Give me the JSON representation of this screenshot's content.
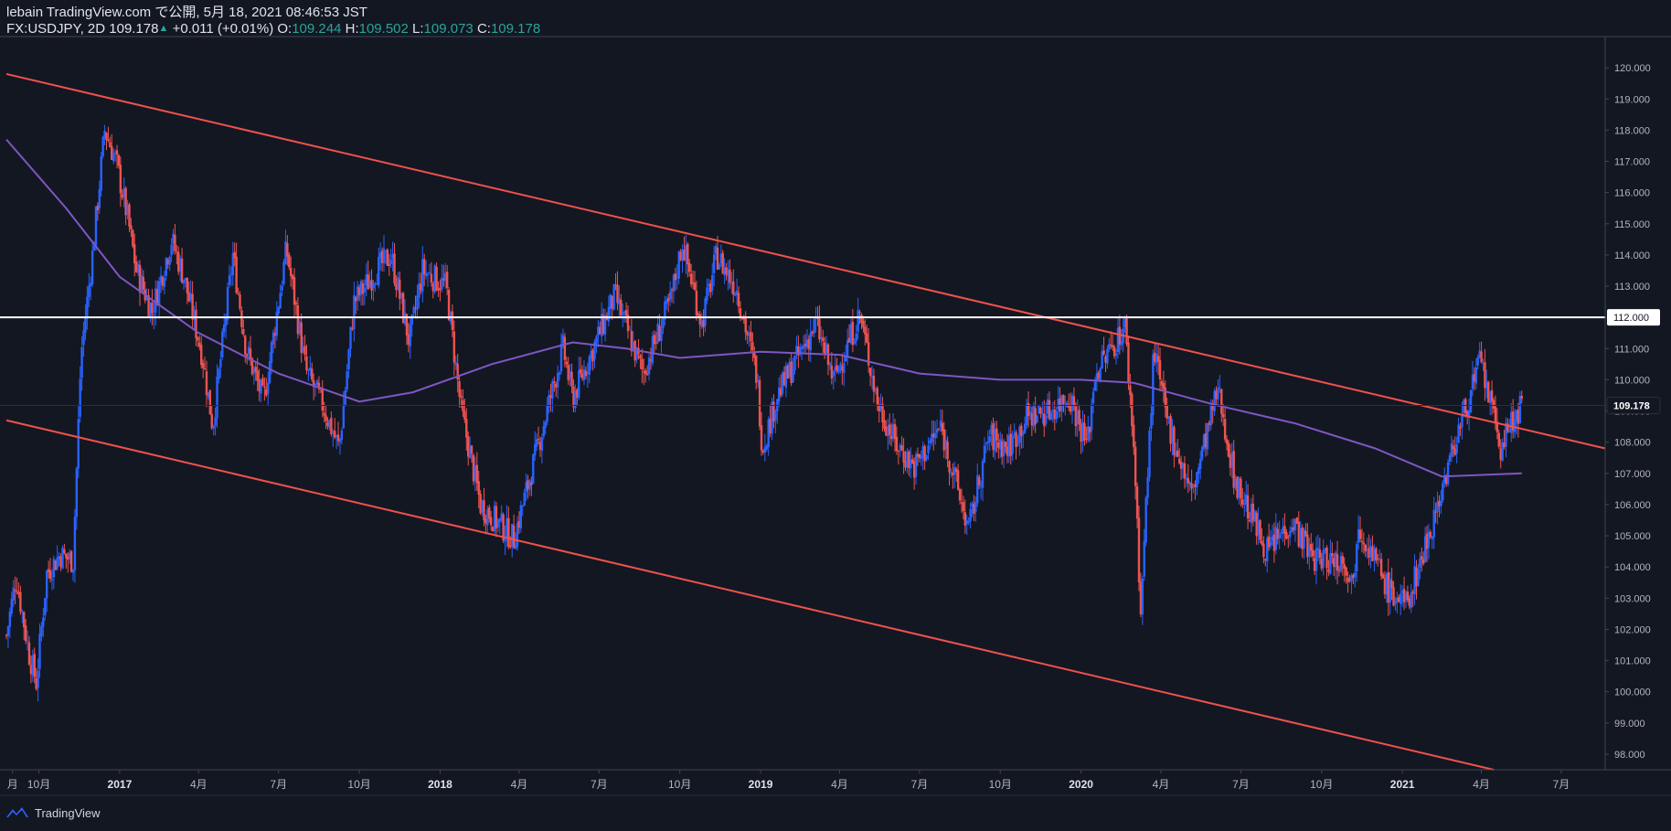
{
  "header": {
    "publish_line": "lebain TradingView.com で公開, 5月 18, 2021 08:46:53 JST",
    "symbol": "FX:USDJPY, 2D",
    "last": "109.178",
    "change": "+0.011 (+0.01%)",
    "o_label": "O:",
    "o_value": "109.244",
    "h_label": "H:",
    "h_value": "109.502",
    "l_label": "L:",
    "l_value": "109.073",
    "c_label": "C:",
    "c_value": "109.178"
  },
  "footer": {
    "brand": "TradingView"
  },
  "colors": {
    "background": "#131722",
    "up": "#2962ff",
    "down": "#ef5350",
    "trendline": "#f0524b",
    "ma": "#7e57c2",
    "level": "#ffffff",
    "text": "#b2b5be",
    "price_tag": "#ffffff"
  },
  "chart_data": {
    "type": "candlestick",
    "symbol": "FX:USDJPY",
    "timeframe": "2D",
    "x_range": [
      "2016-08-25",
      "2021-08-20"
    ],
    "y_range": [
      97.5,
      121.0
    ],
    "y_ticks": [
      98,
      99,
      100,
      101,
      102,
      103,
      104,
      105,
      106,
      107,
      108,
      109,
      110,
      111,
      112,
      113,
      114,
      115,
      116,
      117,
      118,
      119,
      120
    ],
    "x_ticks": [
      {
        "date": "2016-09-01",
        "label": "月"
      },
      {
        "date": "2016-10-01",
        "label": "10月"
      },
      {
        "date": "2017-01-01",
        "label": "2017"
      },
      {
        "date": "2017-04-01",
        "label": "4月"
      },
      {
        "date": "2017-07-01",
        "label": "7月"
      },
      {
        "date": "2017-10-01",
        "label": "10月"
      },
      {
        "date": "2018-01-01",
        "label": "2018"
      },
      {
        "date": "2018-04-01",
        "label": "4月"
      },
      {
        "date": "2018-07-01",
        "label": "7月"
      },
      {
        "date": "2018-10-01",
        "label": "10月"
      },
      {
        "date": "2019-01-01",
        "label": "2019"
      },
      {
        "date": "2019-04-01",
        "label": "4月"
      },
      {
        "date": "2019-07-01",
        "label": "7月"
      },
      {
        "date": "2019-10-01",
        "label": "10月"
      },
      {
        "date": "2020-01-01",
        "label": "2020"
      },
      {
        "date": "2020-04-01",
        "label": "4月"
      },
      {
        "date": "2020-07-01",
        "label": "7月"
      },
      {
        "date": "2020-10-01",
        "label": "10月"
      },
      {
        "date": "2021-01-01",
        "label": "2021"
      },
      {
        "date": "2021-04-01",
        "label": "4月"
      },
      {
        "date": "2021-07-01",
        "label": "7月"
      }
    ],
    "close_path": [
      {
        "date": "2016-08-25",
        "close": 101.8
      },
      {
        "date": "2016-09-05",
        "close": 103.7
      },
      {
        "date": "2016-09-20",
        "close": 101.2
      },
      {
        "date": "2016-09-28",
        "close": 100.3
      },
      {
        "date": "2016-10-10",
        "close": 103.8
      },
      {
        "date": "2016-10-25",
        "close": 104.4
      },
      {
        "date": "2016-11-09",
        "close": 104.2
      },
      {
        "date": "2016-11-18",
        "close": 110.8
      },
      {
        "date": "2016-12-01",
        "close": 114.0
      },
      {
        "date": "2016-12-15",
        "close": 118.0
      },
      {
        "date": "2016-12-28",
        "close": 117.0
      },
      {
        "date": "2017-01-10",
        "close": 115.2
      },
      {
        "date": "2017-01-20",
        "close": 113.5
      },
      {
        "date": "2017-02-07",
        "close": 112.2
      },
      {
        "date": "2017-03-01",
        "close": 114.5
      },
      {
        "date": "2017-03-15",
        "close": 113.3
      },
      {
        "date": "2017-04-05",
        "close": 110.8
      },
      {
        "date": "2017-04-17",
        "close": 108.5
      },
      {
        "date": "2017-05-10",
        "close": 114.0
      },
      {
        "date": "2017-05-25",
        "close": 111.0
      },
      {
        "date": "2017-06-14",
        "close": 109.3
      },
      {
        "date": "2017-07-10",
        "close": 114.2
      },
      {
        "date": "2017-08-01",
        "close": 110.3
      },
      {
        "date": "2017-08-20",
        "close": 109.2
      },
      {
        "date": "2017-09-08",
        "close": 107.8
      },
      {
        "date": "2017-09-25",
        "close": 112.5
      },
      {
        "date": "2017-10-20",
        "close": 113.5
      },
      {
        "date": "2017-11-06",
        "close": 114.0
      },
      {
        "date": "2017-11-27",
        "close": 111.2
      },
      {
        "date": "2017-12-12",
        "close": 113.5
      },
      {
        "date": "2018-01-08",
        "close": 113.0
      },
      {
        "date": "2018-01-25",
        "close": 109.0
      },
      {
        "date": "2018-02-16",
        "close": 106.0
      },
      {
        "date": "2018-03-05",
        "close": 105.5
      },
      {
        "date": "2018-03-26",
        "close": 104.9
      },
      {
        "date": "2018-04-20",
        "close": 107.6
      },
      {
        "date": "2018-05-21",
        "close": 111.0
      },
      {
        "date": "2018-06-01",
        "close": 109.4
      },
      {
        "date": "2018-07-19",
        "close": 112.7
      },
      {
        "date": "2018-08-20",
        "close": 110.2
      },
      {
        "date": "2018-09-20",
        "close": 112.5
      },
      {
        "date": "2018-10-04",
        "close": 114.4
      },
      {
        "date": "2018-10-26",
        "close": 111.8
      },
      {
        "date": "2018-11-12",
        "close": 114.0
      },
      {
        "date": "2018-12-05",
        "close": 112.9
      },
      {
        "date": "2018-12-28",
        "close": 110.1
      },
      {
        "date": "2019-01-03",
        "close": 107.8
      },
      {
        "date": "2019-01-20",
        "close": 109.5
      },
      {
        "date": "2019-03-05",
        "close": 111.8
      },
      {
        "date": "2019-03-25",
        "close": 110.0
      },
      {
        "date": "2019-04-24",
        "close": 112.1
      },
      {
        "date": "2019-05-14",
        "close": 109.3
      },
      {
        "date": "2019-06-03",
        "close": 108.0
      },
      {
        "date": "2019-06-25",
        "close": 107.2
      },
      {
        "date": "2019-07-25",
        "close": 108.5
      },
      {
        "date": "2019-08-26",
        "close": 105.2
      },
      {
        "date": "2019-09-18",
        "close": 108.2
      },
      {
        "date": "2019-10-10",
        "close": 107.8
      },
      {
        "date": "2019-10-31",
        "close": 108.8
      },
      {
        "date": "2019-11-26",
        "close": 109.0
      },
      {
        "date": "2019-12-19",
        "close": 109.5
      },
      {
        "date": "2020-01-08",
        "close": 107.9
      },
      {
        "date": "2020-01-17",
        "close": 110.2
      },
      {
        "date": "2020-02-20",
        "close": 111.7
      },
      {
        "date": "2020-03-02",
        "close": 107.5
      },
      {
        "date": "2020-03-09",
        "close": 102.5
      },
      {
        "date": "2020-03-24",
        "close": 111.0
      },
      {
        "date": "2020-04-07",
        "close": 108.8
      },
      {
        "date": "2020-05-06",
        "close": 106.3
      },
      {
        "date": "2020-06-05",
        "close": 109.7
      },
      {
        "date": "2020-06-24",
        "close": 106.8
      },
      {
        "date": "2020-07-31",
        "close": 104.5
      },
      {
        "date": "2020-08-28",
        "close": 105.5
      },
      {
        "date": "2020-09-21",
        "close": 104.3
      },
      {
        "date": "2020-10-28",
        "close": 104.2
      },
      {
        "date": "2020-11-06",
        "close": 103.4
      },
      {
        "date": "2020-11-11",
        "close": 105.5
      },
      {
        "date": "2020-12-17",
        "close": 103.2
      },
      {
        "date": "2021-01-06",
        "close": 102.8
      },
      {
        "date": "2021-02-05",
        "close": 105.5
      },
      {
        "date": "2021-03-05",
        "close": 108.3
      },
      {
        "date": "2021-03-31",
        "close": 110.6
      },
      {
        "date": "2021-04-23",
        "close": 107.8
      },
      {
        "date": "2021-05-07",
        "close": 108.7
      },
      {
        "date": "2021-05-17",
        "close": 109.178
      }
    ],
    "moving_average": [
      {
        "date": "2016-08-25",
        "value": 117.7
      },
      {
        "date": "2016-11-01",
        "value": 115.5
      },
      {
        "date": "2017-01-01",
        "value": 113.3
      },
      {
        "date": "2017-04-01",
        "value": 111.5
      },
      {
        "date": "2017-07-01",
        "value": 110.2
      },
      {
        "date": "2017-10-01",
        "value": 109.3
      },
      {
        "date": "2017-12-01",
        "value": 109.6
      },
      {
        "date": "2018-03-01",
        "value": 110.5
      },
      {
        "date": "2018-06-01",
        "value": 111.2
      },
      {
        "date": "2018-08-01",
        "value": 111.0
      },
      {
        "date": "2018-10-01",
        "value": 110.7
      },
      {
        "date": "2019-01-01",
        "value": 110.9
      },
      {
        "date": "2019-04-01",
        "value": 110.8
      },
      {
        "date": "2019-07-01",
        "value": 110.2
      },
      {
        "date": "2019-10-01",
        "value": 110.0
      },
      {
        "date": "2020-01-01",
        "value": 110.0
      },
      {
        "date": "2020-03-01",
        "value": 109.9
      },
      {
        "date": "2020-06-01",
        "value": 109.2
      },
      {
        "date": "2020-09-01",
        "value": 108.6
      },
      {
        "date": "2020-12-01",
        "value": 107.8
      },
      {
        "date": "2021-02-15",
        "value": 106.9
      },
      {
        "date": "2021-05-17",
        "value": 107.0
      }
    ],
    "trendlines": [
      {
        "name": "upper",
        "from": {
          "date": "2016-08-25",
          "price": 119.8
        },
        "to": {
          "date": "2021-08-20",
          "price": 107.8
        }
      },
      {
        "name": "lower",
        "from": {
          "date": "2016-08-25",
          "price": 108.7
        },
        "to": {
          "date": "2021-04-15",
          "price": 97.5
        }
      }
    ],
    "levels": [
      {
        "price": 112.0,
        "label": "112.000"
      }
    ],
    "last_price": {
      "value": 109.178,
      "label": "109.178"
    },
    "grid": false,
    "legend": "none"
  }
}
